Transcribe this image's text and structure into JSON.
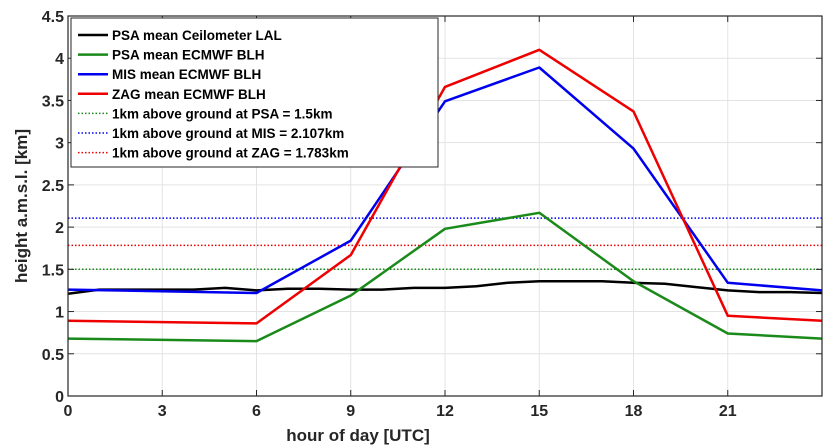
{
  "chart_data": {
    "type": "line",
    "title": "",
    "xlabel": "hour of day [UTC]",
    "ylabel": "height a.m.s.l. [km]",
    "xlim": [
      0,
      24
    ],
    "ylim": [
      0,
      4.5
    ],
    "xticks": [
      0,
      3,
      6,
      9,
      12,
      15,
      18,
      21
    ],
    "xtick_labels": [
      "0",
      "3",
      "6",
      "9",
      "12",
      "15",
      "18",
      "21"
    ],
    "yticks": [
      0,
      0.5,
      1,
      1.5,
      2,
      2.5,
      3,
      3.5,
      4,
      4.5
    ],
    "ytick_labels": [
      "0",
      "0.5",
      "1",
      "1.5",
      "2",
      "2.5",
      "3",
      "3.5",
      "4",
      "4.5"
    ],
    "grid": true,
    "legend_position": "top-left",
    "series": [
      {
        "name": "PSA mean Ceilometer LAL",
        "color": "#000000",
        "style": "solid",
        "x": [
          0,
          1,
          2,
          3,
          4,
          5,
          6,
          7,
          8,
          9,
          10,
          11,
          12,
          13,
          14,
          15,
          16,
          17,
          18,
          19,
          20,
          21,
          22,
          23,
          24
        ],
        "y": [
          1.21,
          1.26,
          1.26,
          1.26,
          1.26,
          1.28,
          1.25,
          1.27,
          1.27,
          1.26,
          1.26,
          1.28,
          1.28,
          1.3,
          1.34,
          1.36,
          1.36,
          1.36,
          1.34,
          1.33,
          1.29,
          1.25,
          1.23,
          1.23,
          1.22
        ]
      },
      {
        "name": "PSA mean ECMWF BLH",
        "color": "#1a8a1a",
        "style": "solid",
        "x": [
          0,
          6,
          9,
          12,
          15,
          18,
          21,
          24
        ],
        "y": [
          0.68,
          0.65,
          1.19,
          1.98,
          2.17,
          1.36,
          0.74,
          0.68
        ]
      },
      {
        "name": "MIS mean ECMWF BLH",
        "color": "#0000ee",
        "style": "solid",
        "x": [
          0,
          6,
          9,
          12,
          15,
          18,
          21,
          24
        ],
        "y": [
          1.26,
          1.22,
          1.84,
          3.49,
          3.89,
          2.93,
          1.34,
          1.25
        ]
      },
      {
        "name": "ZAG mean ECMWF BLH",
        "color": "#ee0000",
        "style": "solid",
        "x": [
          0,
          6,
          9,
          12,
          15,
          18,
          21,
          24
        ],
        "y": [
          0.89,
          0.86,
          1.67,
          3.66,
          4.1,
          3.37,
          0.95,
          0.89
        ]
      },
      {
        "name": "1km above ground at PSA = 1.5km",
        "color": "#1a8a1a",
        "style": "dotted",
        "x": [
          0,
          24
        ],
        "y": [
          1.5,
          1.5
        ]
      },
      {
        "name": "1km above ground at MIS = 2.107km",
        "color": "#0000ee",
        "style": "dotted",
        "x": [
          0,
          24
        ],
        "y": [
          2.107,
          2.107
        ]
      },
      {
        "name": "1km above ground at ZAG = 1.783km",
        "color": "#ee0000",
        "style": "dotted",
        "x": [
          0,
          24
        ],
        "y": [
          1.783,
          1.783
        ]
      }
    ]
  }
}
